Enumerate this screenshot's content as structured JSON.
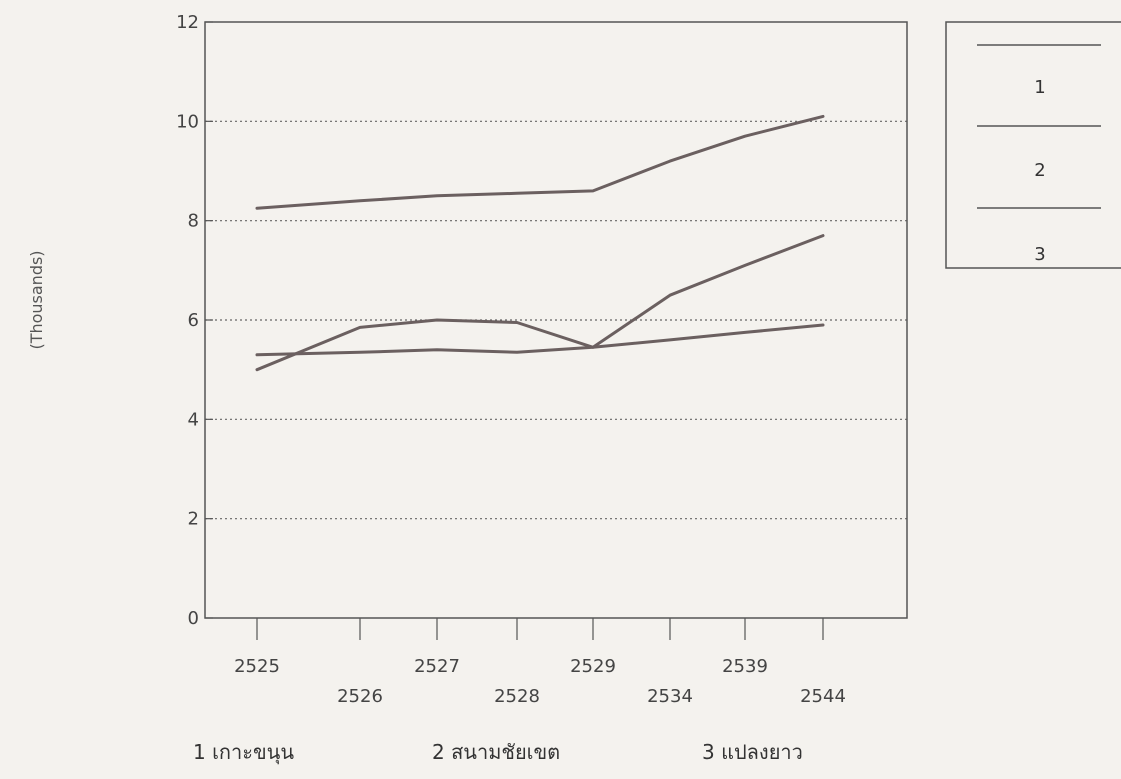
{
  "chart_data": {
    "type": "line",
    "ylabel": "(Thousands)",
    "ylim": [
      0,
      12
    ],
    "yticks": [
      "0",
      "2",
      "4",
      "6",
      "8",
      "10",
      "12"
    ],
    "ytick_values": [
      0,
      2,
      4,
      6,
      8,
      10,
      12
    ],
    "categories": [
      "2525",
      "2526",
      "2527",
      "2528",
      "2529",
      "2534",
      "2539",
      "2544"
    ],
    "grid": "horizontal-dotted",
    "series": [
      {
        "name": "1",
        "values": [
          8.25,
          8.4,
          8.5,
          8.55,
          8.6,
          9.2,
          9.7,
          10.1
        ]
      },
      {
        "name": "2",
        "values": [
          5.0,
          5.85,
          6.0,
          5.95,
          5.45,
          6.5,
          7.1,
          7.7
        ]
      },
      {
        "name": "3",
        "values": [
          5.3,
          5.35,
          5.4,
          5.35,
          5.45,
          5.6,
          5.75,
          5.9
        ]
      }
    ],
    "legend": {
      "placement": "top-right",
      "entries": [
        "1",
        "2",
        "3"
      ]
    },
    "captions": [
      "1 เกาะขนุน",
      "2 สนามชัยเขต",
      "3 แปลงยาว"
    ]
  }
}
